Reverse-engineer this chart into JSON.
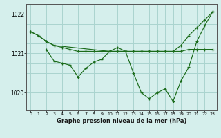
{
  "title": "Graphe pression niveau de la mer (hPa)",
  "background_color": "#d5efec",
  "grid_color": "#aad4cf",
  "line_color": "#1a6b1a",
  "ylim": [
    1019.55,
    1022.25
  ],
  "xlim": [
    -0.5,
    23.5
  ],
  "yticks": [
    1020,
    1021,
    1022
  ],
  "xticks": [
    0,
    1,
    2,
    3,
    4,
    5,
    6,
    7,
    8,
    9,
    10,
    11,
    12,
    13,
    14,
    15,
    16,
    17,
    18,
    19,
    20,
    21,
    22,
    23
  ],
  "series": [
    {
      "x": [
        0,
        1,
        2,
        3,
        4,
        5,
        6,
        7,
        8,
        9,
        10,
        11,
        12,
        13,
        14,
        15,
        16,
        17,
        18,
        19,
        20,
        21,
        22,
        23
      ],
      "y": [
        1021.55,
        1021.45,
        1021.3,
        1021.2,
        1021.15,
        1021.1,
        1021.05,
        1021.05,
        1021.05,
        1021.05,
        1021.05,
        1021.05,
        1021.05,
        1021.05,
        1021.05,
        1021.05,
        1021.05,
        1021.05,
        1021.05,
        1021.05,
        1021.1,
        1021.1,
        1021.1,
        1021.1
      ]
    },
    {
      "x": [
        0,
        1,
        2,
        3,
        10,
        11,
        12,
        13,
        14,
        15,
        16,
        17,
        18,
        19,
        20,
        21,
        22,
        23
      ],
      "y": [
        1021.55,
        1021.45,
        1021.3,
        1021.2,
        1021.05,
        1021.05,
        1021.05,
        1021.05,
        1021.05,
        1021.05,
        1021.05,
        1021.05,
        1021.05,
        1021.2,
        1021.45,
        1021.65,
        1021.85,
        1022.05
      ]
    },
    {
      "x": [
        2,
        3,
        4,
        5,
        6,
        7,
        8,
        9,
        10,
        11,
        12,
        13,
        14,
        15,
        16,
        17,
        18,
        19,
        20,
        21,
        22,
        23
      ],
      "y": [
        1021.1,
        1020.8,
        1020.75,
        1020.7,
        1020.4,
        1020.62,
        1020.78,
        1020.85,
        1021.05,
        1021.15,
        1021.05,
        1020.5,
        1020.0,
        1019.85,
        1020.0,
        1020.1,
        1019.78,
        1020.3,
        1020.65,
        1021.3,
        1021.7,
        1022.05
      ]
    }
  ]
}
